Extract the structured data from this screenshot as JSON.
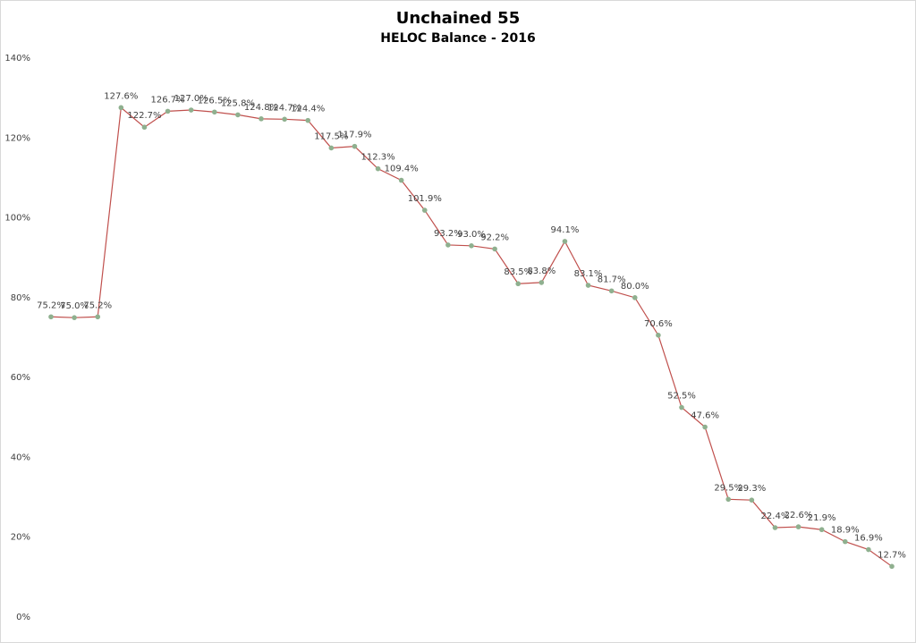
{
  "chart_data": {
    "type": "line",
    "title": "Unchained 55",
    "subtitle": "HELOC Balance - 2016",
    "categories": [
      null,
      null,
      null,
      null,
      null,
      null,
      null,
      null,
      null,
      null,
      null,
      null,
      null,
      null,
      null,
      null,
      null,
      null,
      null,
      null,
      null,
      null,
      null,
      null,
      null,
      null,
      null,
      null,
      null,
      null,
      null,
      null,
      null,
      null,
      null,
      null,
      null
    ],
    "values": [
      75.2,
      75.0,
      75.2,
      127.6,
      122.7,
      126.7,
      127.0,
      126.5,
      125.8,
      124.8,
      124.7,
      124.4,
      117.5,
      117.9,
      112.3,
      109.4,
      101.9,
      93.2,
      93.0,
      92.2,
      83.5,
      83.8,
      94.1,
      83.1,
      81.7,
      80.0,
      70.6,
      52.5,
      47.6,
      29.5,
      29.3,
      22.4,
      22.6,
      21.9,
      18.9,
      16.9,
      12.7
    ],
    "value_labels": [
      "75.2%",
      "75.0%",
      "75.2%",
      "127.6%",
      "122.7%",
      "126.7%",
      "127.0%",
      "126.5%",
      "125.8%",
      "124.8%",
      "124.7%",
      "124.4%",
      "117.5%",
      "117.9%",
      "112.3%",
      "109.4%",
      "101.9%",
      "93.2%",
      "93.0%",
      "92.2%",
      "83.5%",
      "83.8%",
      "94.1%",
      "83.1%",
      "81.7%",
      "80.0%",
      "70.6%",
      "52.5%",
      "47.6%",
      "29.5%",
      "29.3%",
      "22.4%",
      "22.6%",
      "21.9%",
      "18.9%",
      "16.9%",
      "12.7%"
    ],
    "color": "#c0504d",
    "marker_color": "#8fb08f",
    "ylim": [
      0,
      140
    ],
    "yticks": [
      {
        "value": 0,
        "label": "0%"
      },
      {
        "value": 20,
        "label": "20%"
      },
      {
        "value": 40,
        "label": "40%"
      },
      {
        "value": 60,
        "label": "60%"
      },
      {
        "value": 80,
        "label": "80%"
      },
      {
        "value": 100,
        "label": "100%"
      },
      {
        "value": 120,
        "label": "120%"
      },
      {
        "value": 140,
        "label": "140%"
      }
    ],
    "grid": false
  }
}
